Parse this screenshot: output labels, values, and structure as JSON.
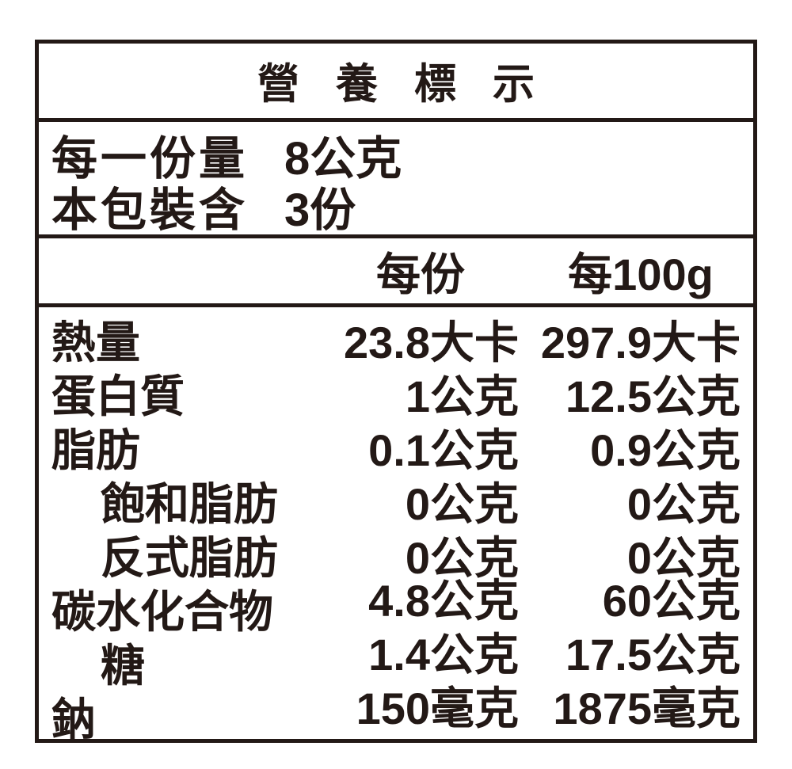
{
  "label": {
    "title": "營養標示",
    "serving_info": [
      {
        "label": "每一份量",
        "value": "8公克"
      },
      {
        "label": "本包裝含",
        "value": "3份"
      }
    ],
    "columns": {
      "per_serving": "每份",
      "per_100g": "每100g"
    },
    "rows": [
      {
        "name": "熱量",
        "per_serving": "23.8大卡",
        "per_100g": "297.9大卡"
      },
      {
        "name": "蛋白質",
        "per_serving": "1公克",
        "per_100g": "12.5公克"
      },
      {
        "name": "脂肪",
        "per_serving": "0.1公克",
        "per_100g": "0.9公克"
      },
      {
        "name": "飽和脂肪",
        "per_serving": "0公克",
        "per_100g": "0公克"
      },
      {
        "name": "反式脂肪",
        "per_serving": "0公克",
        "per_100g": "0公克"
      },
      {
        "name": "碳水化合物",
        "per_serving": "4.8公克",
        "per_100g": "60公克"
      },
      {
        "name": "糖",
        "per_serving": "1.4公克",
        "per_100g": "17.5公克"
      },
      {
        "name": "鈉",
        "per_serving": "150毫克",
        "per_100g": "1875毫克"
      }
    ],
    "colors": {
      "ink": "#231916",
      "background": "#ffffff"
    }
  }
}
